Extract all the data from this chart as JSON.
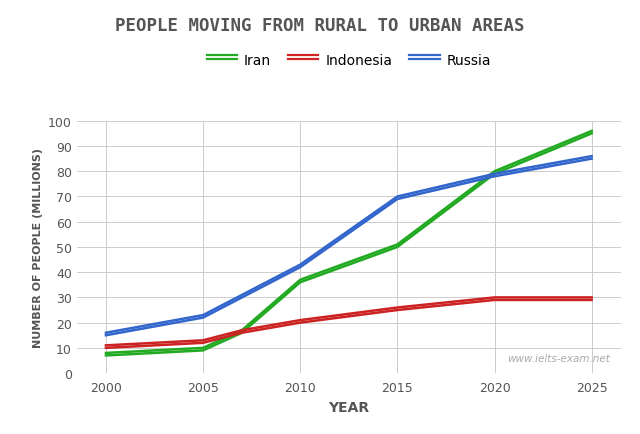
{
  "title": "PEOPLE MOVING FROM RURAL TO URBAN AREAS",
  "xlabel": "YEAR",
  "ylabel": "NUMBER OF PEOPLE (MILLIONS)",
  "years": [
    2000,
    2005,
    2007,
    2010,
    2015,
    2020,
    2025
  ],
  "iran": [
    7,
    9,
    16,
    36,
    50,
    79,
    95
  ],
  "iran2": [
    8,
    10,
    17,
    37,
    51,
    80,
    96
  ],
  "indonesia": [
    11,
    13,
    17,
    21,
    26,
    30,
    30
  ],
  "indonesia2": [
    10,
    12,
    16,
    20,
    25,
    29,
    29
  ],
  "russia": [
    16,
    23,
    31,
    43,
    70,
    79,
    86
  ],
  "russia2": [
    15,
    22,
    30,
    42,
    69,
    78,
    85
  ],
  "iran_color": "#22aa22",
  "indonesia_color": "#cc2222",
  "russia_color": "#3366cc",
  "ylim": [
    0,
    100
  ],
  "xlim": [
    1998.5,
    2026.5
  ],
  "yticks": [
    0,
    10,
    20,
    30,
    40,
    50,
    60,
    70,
    80,
    90,
    100
  ],
  "xticks": [
    2000,
    2005,
    2010,
    2015,
    2020,
    2025
  ],
  "grid_color": "#cccccc",
  "bg_color": "#ffffff",
  "watermark": "www.ielts-exam.net",
  "legend_entries": [
    "Iran",
    "Indonesia",
    "Russia"
  ],
  "title_color": "#555555",
  "tick_color": "#555555"
}
